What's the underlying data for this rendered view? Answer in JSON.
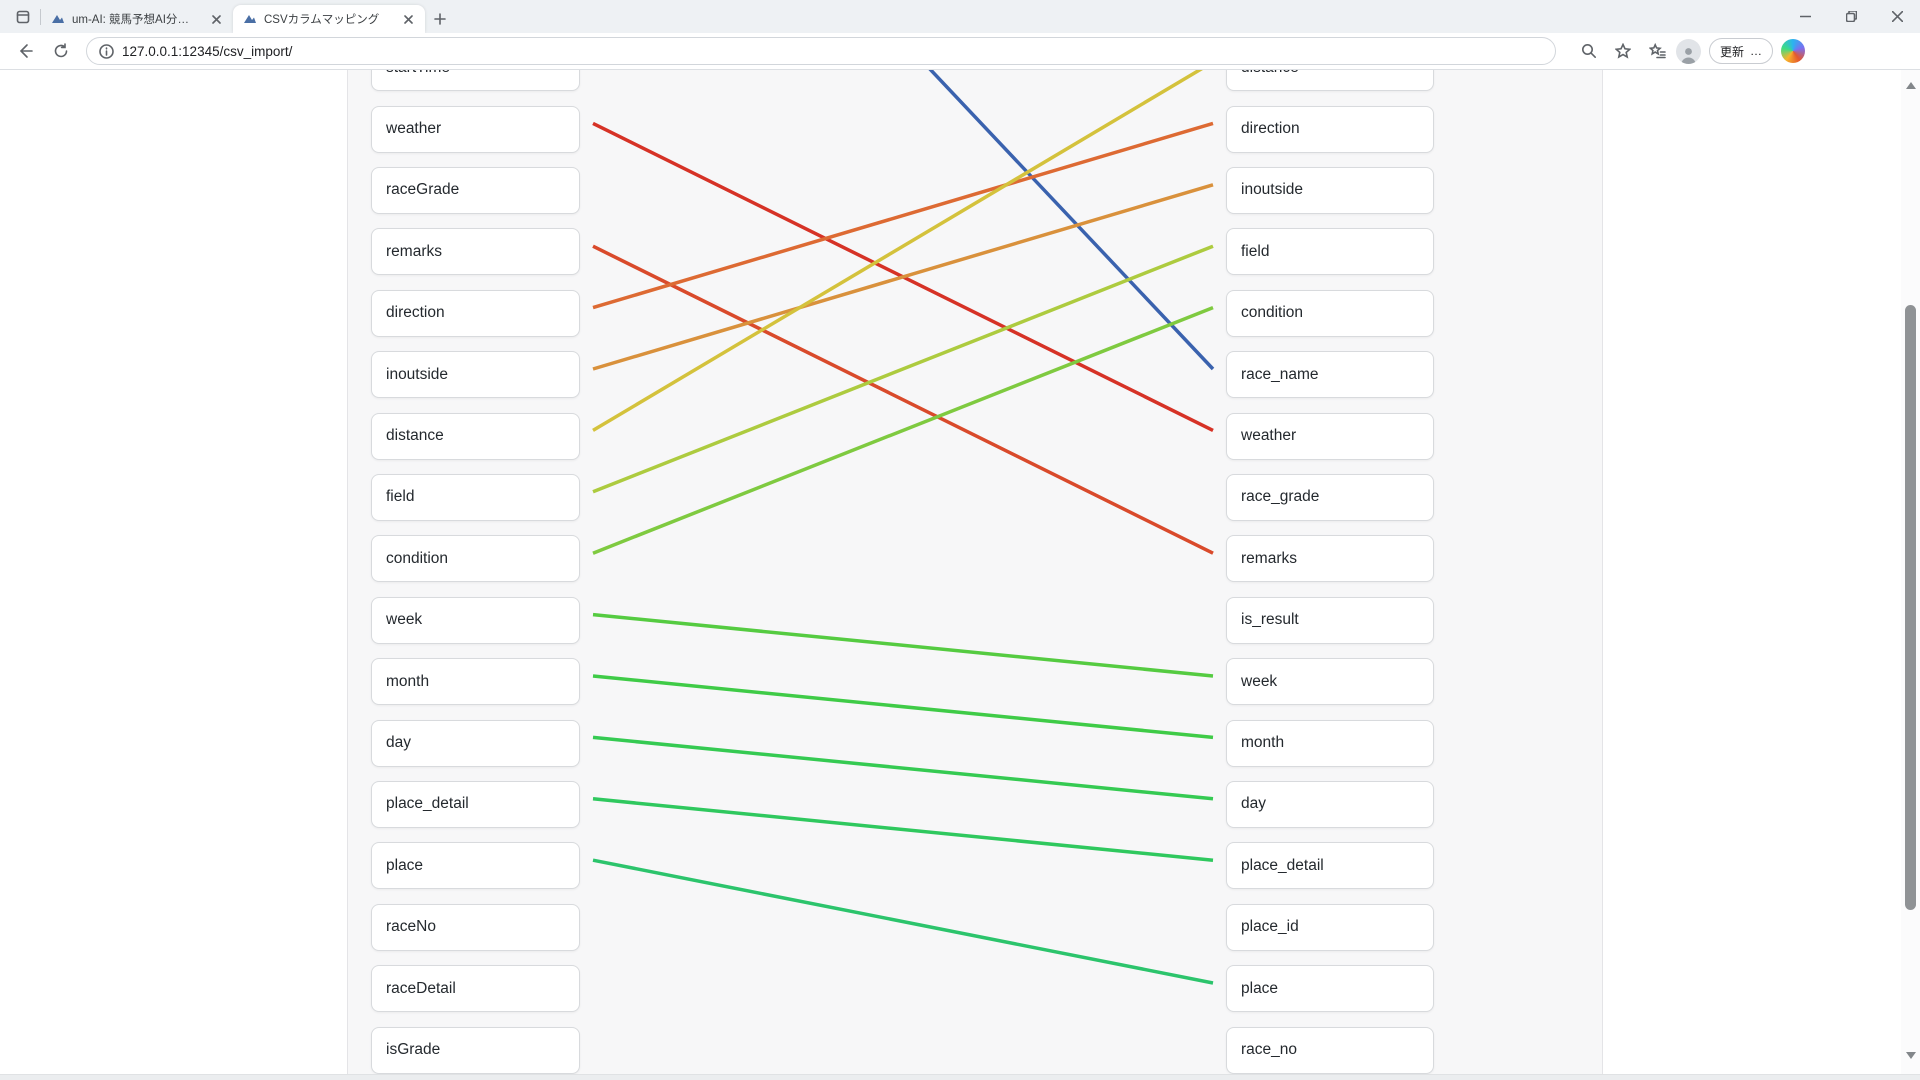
{
  "browser": {
    "tabs": [
      {
        "title": "um-AI: 競馬予想AI分析基盤",
        "active": false
      },
      {
        "title": "CSVカラムマッピング",
        "active": true
      }
    ],
    "address_bar": {
      "url": "127.0.0.1:12345/csv_import/"
    },
    "toolbar": {
      "update_label": "更新",
      "more_label": "…"
    }
  },
  "page": {
    "left_columns": [
      "startTime",
      "weather",
      "raceGrade",
      "remarks",
      "direction",
      "inoutside",
      "distance",
      "field",
      "condition",
      "week",
      "month",
      "day",
      "place_detail",
      "place",
      "raceNo",
      "raceDetail",
      "isGrade"
    ],
    "right_columns": [
      "distance",
      "direction",
      "inoutside",
      "field",
      "condition",
      "race_name",
      "weather",
      "race_grade",
      "remarks",
      "is_result",
      "week",
      "month",
      "day",
      "place_detail",
      "place_id",
      "place",
      "race_no"
    ],
    "connections": [
      {
        "from": "(offscreen)",
        "from_row": -5.7,
        "to": "race_name",
        "to_row": 5,
        "color": "#3a62ae"
      },
      {
        "from": "weather",
        "from_row": 1,
        "to": "weather",
        "to_row": 6,
        "color": "#d63226"
      },
      {
        "from": "remarks",
        "from_row": 3,
        "to": "remarks",
        "to_row": 8,
        "color": "#d94a2b"
      },
      {
        "from": "direction",
        "from_row": 4,
        "to": "direction",
        "to_row": 1,
        "color": "#dd6a33"
      },
      {
        "from": "inoutside",
        "from_row": 5,
        "to": "inoutside",
        "to_row": 2,
        "color": "#d9913c"
      },
      {
        "from": "distance",
        "from_row": 6,
        "to": "distance",
        "to_row": 0,
        "color": "#d4c23c"
      },
      {
        "from": "field",
        "from_row": 7,
        "to": "field",
        "to_row": 3,
        "color": "#adcb3f"
      },
      {
        "from": "condition",
        "from_row": 8,
        "to": "condition",
        "to_row": 4,
        "color": "#7fca40"
      },
      {
        "from": "week",
        "from_row": 9,
        "to": "week",
        "to_row": 10,
        "color": "#55cb41"
      },
      {
        "from": "month",
        "from_row": 10,
        "to": "month",
        "to_row": 11,
        "color": "#3fcb47"
      },
      {
        "from": "day",
        "from_row": 11,
        "to": "day",
        "to_row": 12,
        "color": "#35ca52"
      },
      {
        "from": "place_detail",
        "from_row": 12,
        "to": "place_detail",
        "to_row": 13,
        "color": "#2fc85e"
      },
      {
        "from": "place",
        "from_row": 13,
        "to": "place",
        "to_row": 15,
        "color": "#2cc46c"
      }
    ]
  }
}
